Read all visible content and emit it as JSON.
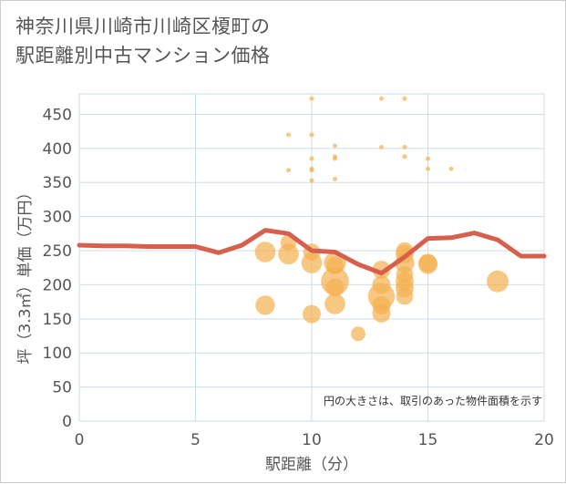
{
  "title_lines": [
    "神奈川県川崎市川崎区榎町の",
    "駅距離別中古マンション価格"
  ],
  "chart_data": {
    "type": "scatter",
    "title": "神奈川県川崎市川崎区榎町の駅距離別中古マンション価格",
    "xlabel": "駅距離（分）",
    "ylabel": "坪（3.3㎡）単価（万円）",
    "xlim": [
      0,
      20
    ],
    "ylim": [
      0,
      480
    ],
    "x_ticks": [
      0,
      5,
      10,
      15,
      20
    ],
    "y_ticks": [
      0,
      50,
      100,
      150,
      200,
      250,
      300,
      350,
      400,
      450
    ],
    "annotation": "円の大きさは、取引のあった物件面積を示す",
    "colors": {
      "bubble": "#f3b14f",
      "line": "#d6604d",
      "grid": "#cfdce6",
      "plot_bg": "#ffffff"
    },
    "bubbles": [
      {
        "x": 8,
        "y": 248,
        "size": 14
      },
      {
        "x": 8,
        "y": 170,
        "size": 13
      },
      {
        "x": 9,
        "y": 420,
        "size": 3
      },
      {
        "x": 9,
        "y": 368,
        "size": 3
      },
      {
        "x": 9,
        "y": 262,
        "size": 10
      },
      {
        "x": 9,
        "y": 245,
        "size": 14
      },
      {
        "x": 10,
        "y": 473,
        "size": 3
      },
      {
        "x": 10,
        "y": 420,
        "size": 3
      },
      {
        "x": 10,
        "y": 385,
        "size": 3
      },
      {
        "x": 10,
        "y": 370,
        "size": 3
      },
      {
        "x": 10,
        "y": 368,
        "size": 3
      },
      {
        "x": 10,
        "y": 353,
        "size": 3
      },
      {
        "x": 10,
        "y": 248,
        "size": 11
      },
      {
        "x": 10,
        "y": 232,
        "size": 14
      },
      {
        "x": 10,
        "y": 157,
        "size": 12
      },
      {
        "x": 11,
        "y": 404,
        "size": 3
      },
      {
        "x": 11,
        "y": 388,
        "size": 3
      },
      {
        "x": 11,
        "y": 385,
        "size": 3
      },
      {
        "x": 11,
        "y": 355,
        "size": 3
      },
      {
        "x": 11,
        "y": 232,
        "size": 15
      },
      {
        "x": 11,
        "y": 228,
        "size": 11
      },
      {
        "x": 11,
        "y": 205,
        "size": 20
      },
      {
        "x": 11,
        "y": 196,
        "size": 12
      },
      {
        "x": 11,
        "y": 172,
        "size": 14
      },
      {
        "x": 12,
        "y": 128,
        "size": 9
      },
      {
        "x": 13,
        "y": 473,
        "size": 3
      },
      {
        "x": 13,
        "y": 402,
        "size": 3
      },
      {
        "x": 13,
        "y": 222,
        "size": 12
      },
      {
        "x": 13,
        "y": 200,
        "size": 12
      },
      {
        "x": 13,
        "y": 183,
        "size": 19
      },
      {
        "x": 13,
        "y": 170,
        "size": 12
      },
      {
        "x": 13,
        "y": 158,
        "size": 12
      },
      {
        "x": 14,
        "y": 473,
        "size": 3
      },
      {
        "x": 14,
        "y": 402,
        "size": 3
      },
      {
        "x": 14,
        "y": 388,
        "size": 3
      },
      {
        "x": 14,
        "y": 250,
        "size": 11
      },
      {
        "x": 14,
        "y": 245,
        "size": 12
      },
      {
        "x": 14,
        "y": 232,
        "size": 13
      },
      {
        "x": 14,
        "y": 215,
        "size": 11
      },
      {
        "x": 14,
        "y": 205,
        "size": 12
      },
      {
        "x": 14,
        "y": 195,
        "size": 12
      },
      {
        "x": 14,
        "y": 183,
        "size": 11
      },
      {
        "x": 15,
        "y": 385,
        "size": 3
      },
      {
        "x": 15,
        "y": 370,
        "size": 3
      },
      {
        "x": 15,
        "y": 232,
        "size": 12
      },
      {
        "x": 15,
        "y": 230,
        "size": 13
      },
      {
        "x": 16,
        "y": 370,
        "size": 3
      },
      {
        "x": 18,
        "y": 205,
        "size": 15
      }
    ],
    "line": {
      "x": [
        0,
        1,
        2,
        3,
        4,
        5,
        6,
        7,
        8,
        9,
        10,
        11,
        12,
        13,
        14,
        15,
        16,
        17,
        18,
        19,
        20
      ],
      "y": [
        258,
        257,
        257,
        256,
        256,
        256,
        247,
        258,
        280,
        275,
        250,
        248,
        230,
        217,
        241,
        268,
        269,
        276,
        266,
        242,
        242
      ]
    }
  }
}
